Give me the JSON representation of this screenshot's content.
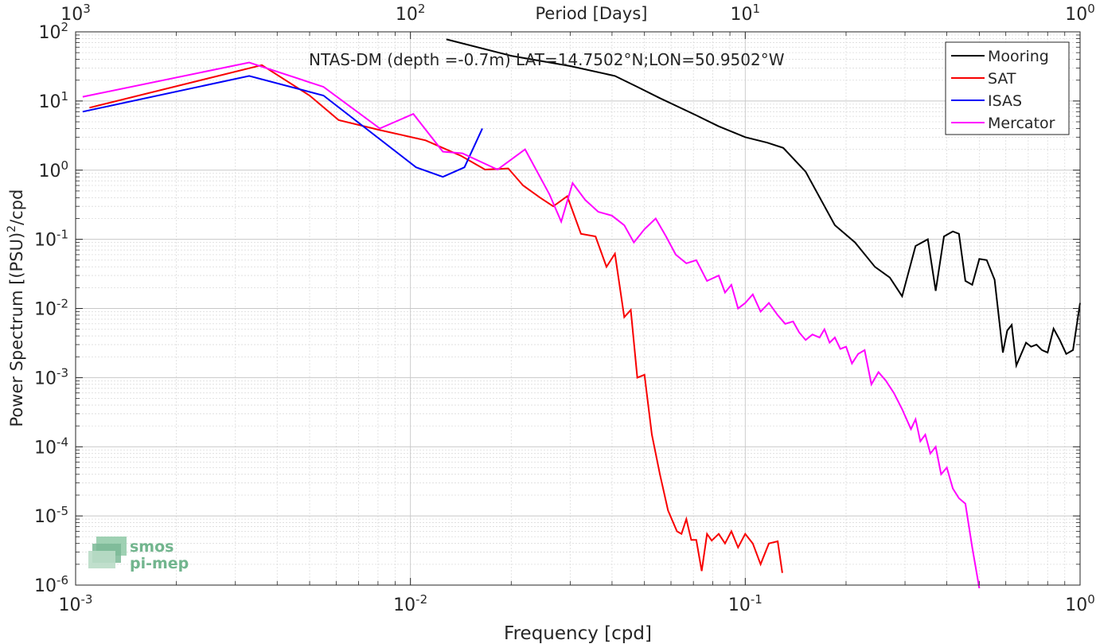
{
  "chart_data": {
    "type": "line",
    "title": "NTAS-DM (depth =-0.7m) LAT=14.7502°N;LON=50.9502°W",
    "xlabel": "Frequency [cpd]",
    "ylabel": "Power Spectrum [(PSU)",
    "ylabel_sup": "2",
    "ylabel_suffix": "/cpd",
    "top_xlabel": "Period [Days]",
    "xscale": "log",
    "yscale": "log",
    "xlim": [
      0.001,
      1
    ],
    "ylim": [
      1e-06,
      100
    ],
    "x_ticks": [
      {
        "value": 0.001,
        "base": "10",
        "exp": "-3"
      },
      {
        "value": 0.01,
        "base": "10",
        "exp": "-2"
      },
      {
        "value": 0.1,
        "base": "10",
        "exp": "-1"
      },
      {
        "value": 1,
        "base": "10",
        "exp": "0"
      }
    ],
    "y_ticks": [
      {
        "value": 1e-06,
        "base": "10",
        "exp": "-6"
      },
      {
        "value": 1e-05,
        "base": "10",
        "exp": "-5"
      },
      {
        "value": 0.0001,
        "base": "10",
        "exp": "-4"
      },
      {
        "value": 0.001,
        "base": "10",
        "exp": "-3"
      },
      {
        "value": 0.01,
        "base": "10",
        "exp": "-2"
      },
      {
        "value": 0.1,
        "base": "10",
        "exp": "-1"
      },
      {
        "value": 1,
        "base": "10",
        "exp": "0"
      },
      {
        "value": 10,
        "base": "10",
        "exp": "1"
      },
      {
        "value": 100,
        "base": "10",
        "exp": "2"
      }
    ],
    "top_ticks": [
      {
        "value": 0.001,
        "base": "10",
        "exp": "3"
      },
      {
        "value": 0.01,
        "base": "10",
        "exp": "2"
      },
      {
        "value": 0.1,
        "base": "10",
        "exp": "1"
      },
      {
        "value": 1,
        "base": "10",
        "exp": "0"
      }
    ],
    "grid": true,
    "legend_position": "top-right",
    "series": [
      {
        "name": "Mooring",
        "color": "#000000",
        "points": [
          [
            0.0128,
            78
          ],
          [
            0.02,
            45
          ],
          [
            0.03,
            32
          ],
          [
            0.0408,
            23
          ],
          [
            0.0476,
            16
          ],
          [
            0.0556,
            11
          ],
          [
            0.0714,
            6.2
          ],
          [
            0.0833,
            4.3
          ],
          [
            0.1,
            3.0
          ],
          [
            0.1163,
            2.5
          ],
          [
            0.1299,
            2.1
          ],
          [
            0.1515,
            0.95
          ],
          [
            0.1852,
            0.16
          ],
          [
            0.2128,
            0.09
          ],
          [
            0.2439,
            0.04
          ],
          [
            0.2703,
            0.028
          ],
          [
            0.2941,
            0.015
          ],
          [
            0.3226,
            0.08
          ],
          [
            0.3509,
            0.1
          ],
          [
            0.3704,
            0.018
          ],
          [
            0.3922,
            0.11
          ],
          [
            0.4167,
            0.13
          ],
          [
            0.4348,
            0.12
          ],
          [
            0.4545,
            0.025
          ],
          [
            0.4762,
            0.022
          ],
          [
            0.5,
            0.052
          ],
          [
            0.5263,
            0.05
          ],
          [
            0.5556,
            0.026
          ],
          [
            0.5882,
            0.0023
          ],
          [
            0.6061,
            0.0048
          ],
          [
            0.625,
            0.0058
          ],
          [
            0.6452,
            0.0015
          ],
          [
            0.6897,
            0.0032
          ],
          [
            0.7143,
            0.0028
          ],
          [
            0.7407,
            0.003
          ],
          [
            0.7692,
            0.0025
          ],
          [
            0.8,
            0.0023
          ],
          [
            0.8333,
            0.0051
          ],
          [
            0.8696,
            0.0035
          ],
          [
            0.9091,
            0.0022
          ],
          [
            0.9524,
            0.0025
          ],
          [
            1.0,
            0.012
          ]
        ]
      },
      {
        "name": "SAT",
        "color": "#f80000",
        "points": [
          [
            0.0011,
            8.0
          ],
          [
            0.0036,
            33
          ],
          [
            0.005,
            12
          ],
          [
            0.0061,
            5.3
          ],
          [
            0.0081,
            3.8
          ],
          [
            0.0111,
            2.7
          ],
          [
            0.0125,
            2.1
          ],
          [
            0.0142,
            1.6
          ],
          [
            0.0167,
            1.02
          ],
          [
            0.0196,
            1.06
          ],
          [
            0.0217,
            0.6
          ],
          [
            0.0244,
            0.4
          ],
          [
            0.0267,
            0.3
          ],
          [
            0.0294,
            0.42
          ],
          [
            0.0323,
            0.12
          ],
          [
            0.0357,
            0.11
          ],
          [
            0.0385,
            0.04
          ],
          [
            0.0408,
            0.062
          ],
          [
            0.0435,
            0.0075
          ],
          [
            0.0455,
            0.0095
          ],
          [
            0.0476,
            0.001
          ],
          [
            0.05,
            0.0011
          ],
          [
            0.0526,
            0.00015
          ],
          [
            0.0556,
            4e-05
          ],
          [
            0.0588,
            1.2e-05
          ],
          [
            0.0625,
            6e-06
          ],
          [
            0.0645,
            5.5e-06
          ],
          [
            0.0667,
            9e-06
          ],
          [
            0.069,
            4.5e-06
          ],
          [
            0.0714,
            4.5e-06
          ],
          [
            0.0741,
            1.6e-06
          ],
          [
            0.0769,
            5.5e-06
          ],
          [
            0.0794,
            4.4e-06
          ],
          [
            0.0833,
            5.5e-06
          ],
          [
            0.087,
            4e-06
          ],
          [
            0.0909,
            6e-06
          ],
          [
            0.0952,
            3.5e-06
          ],
          [
            0.1,
            5.5e-06
          ],
          [
            0.1053,
            4e-06
          ],
          [
            0.1111,
            2e-06
          ],
          [
            0.1176,
            4e-06
          ],
          [
            0.125,
            4.3e-06
          ],
          [
            0.129,
            1.5e-06
          ]
        ]
      },
      {
        "name": "ISAS",
        "color": "#0000f8",
        "points": [
          [
            0.00105,
            7.0
          ],
          [
            0.0033,
            23
          ],
          [
            0.0055,
            12
          ],
          [
            0.0104,
            1.1
          ],
          [
            0.0125,
            0.8
          ],
          [
            0.0145,
            1.1
          ],
          [
            0.0164,
            4.0
          ]
        ]
      },
      {
        "name": "Mercator",
        "color": "#ff00ff",
        "points": [
          [
            0.00105,
            11.5
          ],
          [
            0.0033,
            36
          ],
          [
            0.0055,
            16
          ],
          [
            0.0081,
            4.0
          ],
          [
            0.0102,
            6.5
          ],
          [
            0.0125,
            1.85
          ],
          [
            0.0143,
            1.75
          ],
          [
            0.0182,
            1.02
          ],
          [
            0.022,
            2.0
          ],
          [
            0.026,
            0.45
          ],
          [
            0.0282,
            0.18
          ],
          [
            0.0305,
            0.65
          ],
          [
            0.0333,
            0.37
          ],
          [
            0.0364,
            0.25
          ],
          [
            0.04,
            0.22
          ],
          [
            0.0435,
            0.16
          ],
          [
            0.0465,
            0.09
          ],
          [
            0.05,
            0.14
          ],
          [
            0.054,
            0.2
          ],
          [
            0.058,
            0.11
          ],
          [
            0.062,
            0.06
          ],
          [
            0.0667,
            0.045
          ],
          [
            0.0714,
            0.05
          ],
          [
            0.0769,
            0.025
          ],
          [
            0.0833,
            0.03
          ],
          [
            0.087,
            0.017
          ],
          [
            0.0909,
            0.022
          ],
          [
            0.0952,
            0.01
          ],
          [
            0.1,
            0.012
          ],
          [
            0.1053,
            0.016
          ],
          [
            0.1111,
            0.009
          ],
          [
            0.1176,
            0.012
          ],
          [
            0.125,
            0.008
          ],
          [
            0.1316,
            0.006
          ],
          [
            0.1389,
            0.0065
          ],
          [
            0.1449,
            0.0045
          ],
          [
            0.1515,
            0.0035
          ],
          [
            0.1587,
            0.0042
          ],
          [
            0.1667,
            0.0038
          ],
          [
            0.1724,
            0.005
          ],
          [
            0.1786,
            0.0032
          ],
          [
            0.1852,
            0.0038
          ],
          [
            0.1923,
            0.0026
          ],
          [
            0.2,
            0.0028
          ],
          [
            0.2083,
            0.0016
          ],
          [
            0.2174,
            0.0022
          ],
          [
            0.2273,
            0.0025
          ],
          [
            0.2381,
            0.0008
          ],
          [
            0.25,
            0.0012
          ],
          [
            0.2632,
            0.0009
          ],
          [
            0.2778,
            0.0006
          ],
          [
            0.2941,
            0.00035
          ],
          [
            0.3125,
            0.00018
          ],
          [
            0.3226,
            0.00025
          ],
          [
            0.3333,
            0.00012
          ],
          [
            0.3448,
            0.00015
          ],
          [
            0.3571,
            8e-05
          ],
          [
            0.3704,
            0.0001
          ],
          [
            0.3846,
            4e-05
          ],
          [
            0.4,
            5e-05
          ],
          [
            0.4167,
            2.5e-05
          ],
          [
            0.4348,
            1.8e-05
          ],
          [
            0.4545,
            1.5e-05
          ],
          [
            0.4762,
            3.5e-06
          ],
          [
            0.5,
            9e-07
          ]
        ]
      }
    ]
  },
  "logo": {
    "line1": "smos",
    "line2": "pi-mep"
  }
}
